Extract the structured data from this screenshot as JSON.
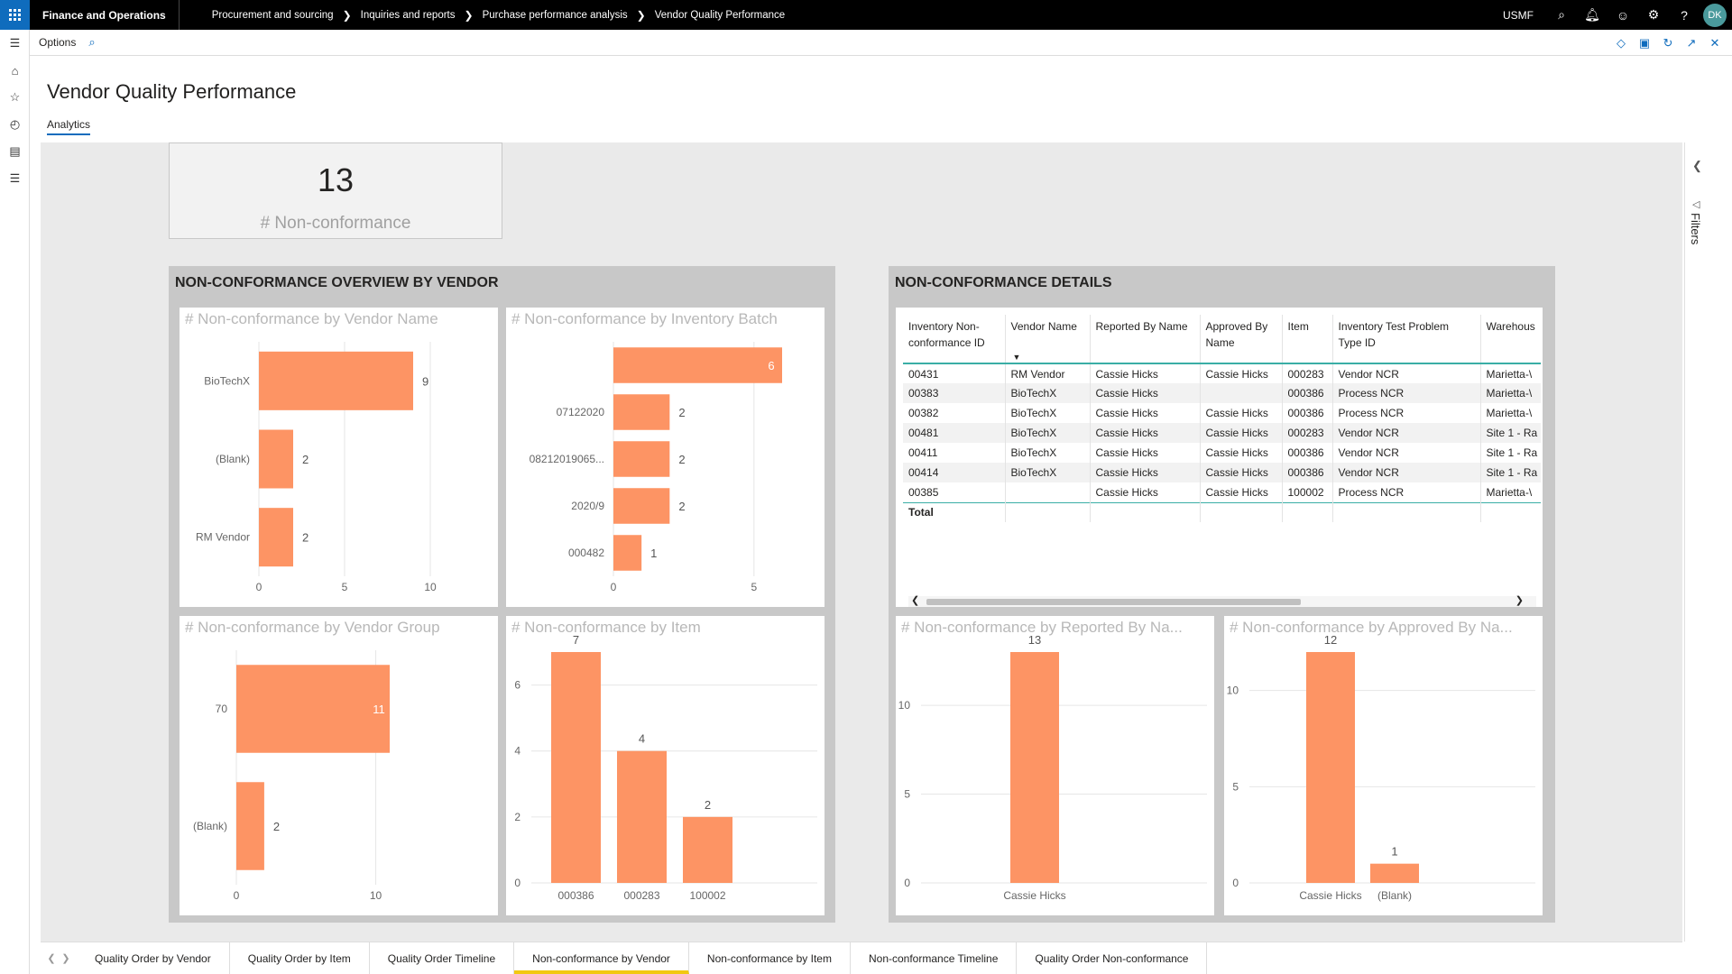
{
  "nav": {
    "app_name": "Finance and Operations",
    "breadcrumbs": [
      "Procurement and sourcing",
      "Inquiries and reports",
      "Purchase performance analysis",
      "Vendor Quality Performance"
    ],
    "company": "USMF",
    "user_initials": "DK"
  },
  "actionbar": {
    "options_label": "Options"
  },
  "page": {
    "title": "Vendor Quality Performance",
    "tab": "Analytics"
  },
  "filters_label": "Filters",
  "kpi": {
    "value": "13",
    "label": "# Non-conformance"
  },
  "sections": {
    "vendor_overview": "NON-CONFORMANCE OVERVIEW BY VENDOR",
    "details": "NON-CONFORMANCE DETAILS"
  },
  "chart_titles": {
    "by_vendor_name": "# Non-conformance by Vendor Name",
    "by_batch": "# Non-conformance by Inventory Batch",
    "by_vendor_group": "# Non-conformance by Vendor Group",
    "by_item": "# Non-conformance by Item",
    "by_reported": "# Non-conformance by Reported By Na...",
    "by_approved": "# Non-conformance by Approved By Na..."
  },
  "chart_data": [
    {
      "id": "by_vendor_name",
      "type": "bar",
      "orientation": "horizontal",
      "categories": [
        "BioTechX",
        "(Blank)",
        "RM Vendor"
      ],
      "values": [
        9,
        2,
        2
      ],
      "xlim": [
        0,
        10
      ],
      "xticks": [
        0,
        5,
        10
      ]
    },
    {
      "id": "by_batch",
      "type": "bar",
      "orientation": "horizontal",
      "categories": [
        "",
        "07122020",
        "08212019065...",
        "2020/9",
        "000482"
      ],
      "values": [
        6,
        2,
        2,
        2,
        1
      ],
      "xlim": [
        0,
        6
      ],
      "xticks": [
        0,
        5
      ]
    },
    {
      "id": "by_vendor_group",
      "type": "bar",
      "orientation": "horizontal",
      "categories": [
        "70",
        "(Blank)"
      ],
      "values": [
        11,
        2
      ],
      "xlim": [
        0,
        11
      ],
      "xticks": [
        0,
        10
      ]
    },
    {
      "id": "by_item",
      "type": "bar",
      "orientation": "vertical",
      "categories": [
        "000386",
        "000283",
        "100002"
      ],
      "values": [
        7,
        4,
        2
      ],
      "ylim": [
        0,
        7
      ],
      "yticks": [
        0,
        2,
        4,
        6
      ]
    },
    {
      "id": "by_reported",
      "type": "bar",
      "orientation": "vertical",
      "categories": [
        "Cassie Hicks"
      ],
      "values": [
        13
      ],
      "ylim": [
        0,
        13
      ],
      "yticks": [
        0,
        5,
        10
      ]
    },
    {
      "id": "by_approved",
      "type": "bar",
      "orientation": "vertical",
      "categories": [
        "Cassie Hicks",
        "(Blank)"
      ],
      "values": [
        12,
        1
      ],
      "ylim": [
        0,
        12
      ],
      "yticks": [
        0,
        5,
        10
      ]
    }
  ],
  "details_table": {
    "headers": [
      "Inventory Non-conformance ID",
      "Vendor Name",
      "Reported By Name",
      "Approved By Name",
      "Item",
      "Inventory Test Problem Type ID",
      "Warehous"
    ],
    "rows": [
      [
        "00431",
        "RM Vendor",
        "Cassie Hicks",
        "Cassie Hicks",
        "000283",
        "Vendor NCR",
        "Marietta-\\"
      ],
      [
        "00383",
        "BioTechX",
        "Cassie Hicks",
        "",
        "000386",
        "Process NCR",
        "Marietta-\\"
      ],
      [
        "00382",
        "BioTechX",
        "Cassie Hicks",
        "Cassie Hicks",
        "000386",
        "Process NCR",
        "Marietta-\\"
      ],
      [
        "00481",
        "BioTechX",
        "Cassie Hicks",
        "Cassie Hicks",
        "000283",
        "Vendor NCR",
        "Site 1 - Ra"
      ],
      [
        "00411",
        "BioTechX",
        "Cassie Hicks",
        "Cassie Hicks",
        "000386",
        "Vendor NCR",
        "Site 1 - Ra"
      ],
      [
        "00414",
        "BioTechX",
        "Cassie Hicks",
        "Cassie Hicks",
        "000386",
        "Vendor NCR",
        "Site 1 - Ra"
      ],
      [
        "00385",
        "",
        "Cassie Hicks",
        "Cassie Hicks",
        "100002",
        "Process NCR",
        "Marietta-\\"
      ]
    ],
    "total_label": "Total"
  },
  "bottom_tabs": [
    "Quality Order by Vendor",
    "Quality Order by Item",
    "Quality Order Timeline",
    "Non-conformance by Vendor",
    "Non-conformance by Item",
    "Non-conformance Timeline",
    "Quality Order Non-conformance"
  ],
  "active_tab_index": 3,
  "colors": {
    "bar": "#fd9464",
    "accent": "#0f6cbd",
    "table_rule": "#3aaea6",
    "active_tab": "#f2c811"
  }
}
